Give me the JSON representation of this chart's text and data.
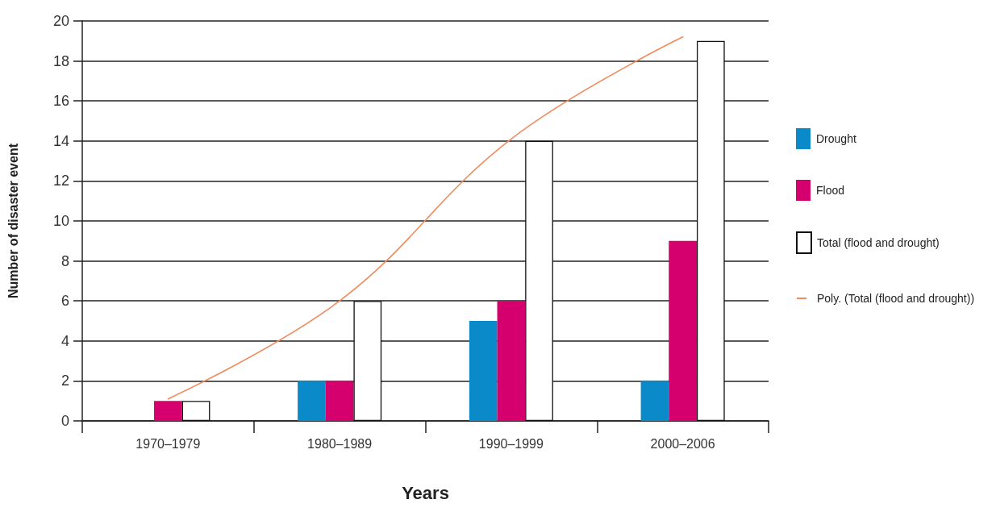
{
  "chart_data": {
    "type": "bar",
    "xlabel": "Years",
    "ylabel": "Number of disaster event",
    "categories": [
      "1970–1979",
      "1980–1989",
      "1990–1999",
      "2000–2006"
    ],
    "series": [
      {
        "name": "Drought",
        "color": "#0a8ac9",
        "values": [
          null,
          2,
          5,
          2
        ]
      },
      {
        "name": "Flood",
        "color": "#d5006d",
        "values": [
          1,
          2,
          6,
          9
        ]
      },
      {
        "name": "Total (flood and drought)",
        "color": "#ffffff",
        "values": [
          1,
          6,
          14,
          19
        ]
      },
      {
        "name": "Poly. (Total (flood and drought))",
        "type": "line",
        "color": "#f08a5d",
        "x": [
          "1970–1979",
          "1980–1989",
          "1990–1999",
          "2000–2006"
        ],
        "values": [
          1.1,
          6,
          14.1,
          19.2
        ]
      }
    ],
    "ylim": [
      0,
      20
    ],
    "yticks": [
      0,
      2,
      4,
      6,
      8,
      10,
      12,
      14,
      16,
      18,
      20
    ],
    "grid": "y",
    "legend": "right",
    "marker": "none"
  }
}
